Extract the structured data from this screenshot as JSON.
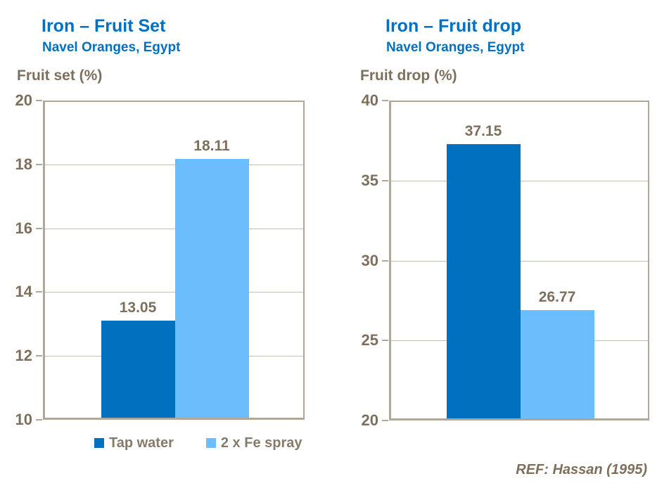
{
  "colors": {
    "title_blue": "#0070C0",
    "label_brown": "#7E6F5C",
    "legend_brown": "#867A69",
    "frame_tan": "#B2A797",
    "grid_tan": "#C8BEAF",
    "bars": [
      "#0071BC",
      "#6BBDFB"
    ]
  },
  "ref_note": "REF: Hassan (1995)",
  "chart_data": [
    {
      "type": "bar",
      "title": "Iron – Fruit Set",
      "subtitle": "Navel Oranges, Egypt",
      "axis_label": "Fruit set (%)",
      "categories": [
        "Tap water",
        "2 x Fe spray"
      ],
      "values": [
        13.05,
        18.11
      ],
      "value_labels": [
        "13.05",
        "18.11"
      ],
      "ylim": [
        10,
        20
      ],
      "yticks": [
        10,
        12,
        14,
        16,
        18,
        20
      ],
      "grid": true,
      "legend": {
        "position": "bottom",
        "items": [
          "Tap water",
          "2 x Fe spray"
        ]
      }
    },
    {
      "type": "bar",
      "title": "Iron – Fruit drop",
      "subtitle": "Navel Oranges, Egypt",
      "axis_label": "Fruit drop (%)",
      "categories": [
        "Tap water",
        "2 x Fe spray"
      ],
      "values": [
        37.15,
        26.77
      ],
      "value_labels": [
        "37.15",
        "26.77"
      ],
      "ylim": [
        20,
        40
      ],
      "yticks": [
        20,
        25,
        30,
        35,
        40
      ],
      "grid": true,
      "legend": null
    }
  ]
}
